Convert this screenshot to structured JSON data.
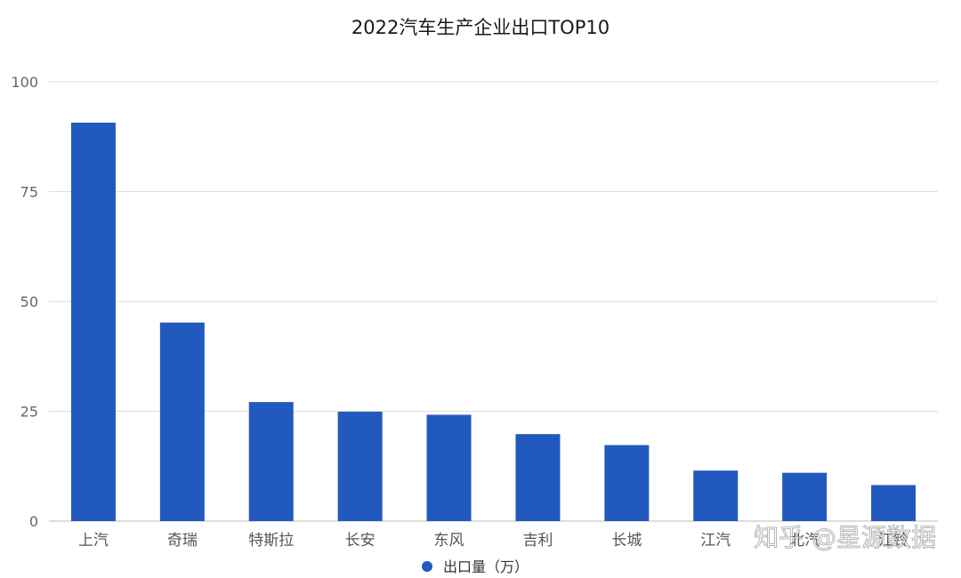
{
  "watermark": "知乎 @星源数据",
  "chart_data": {
    "type": "bar",
    "title": "2022汽车生产企业出口TOP10",
    "categories": [
      "上汽",
      "奇瑞",
      "特斯拉",
      "长安",
      "东风",
      "吉利",
      "长城",
      "江汽",
      "北汽",
      "江铃"
    ],
    "series": [
      {
        "name": "出口量（万）",
        "values": [
          90.7,
          45.2,
          27.1,
          24.9,
          24.2,
          19.8,
          17.3,
          11.5,
          11.0,
          8.2
        ]
      }
    ],
    "ylim": [
      0,
      100
    ],
    "yticks": [
      0,
      25,
      50,
      75,
      100
    ],
    "grid": true,
    "legend_position": "bottom-center",
    "colors": {
      "bar": "#2259BE",
      "grid": "#dddddd",
      "axis": "#bbbbbb"
    }
  }
}
